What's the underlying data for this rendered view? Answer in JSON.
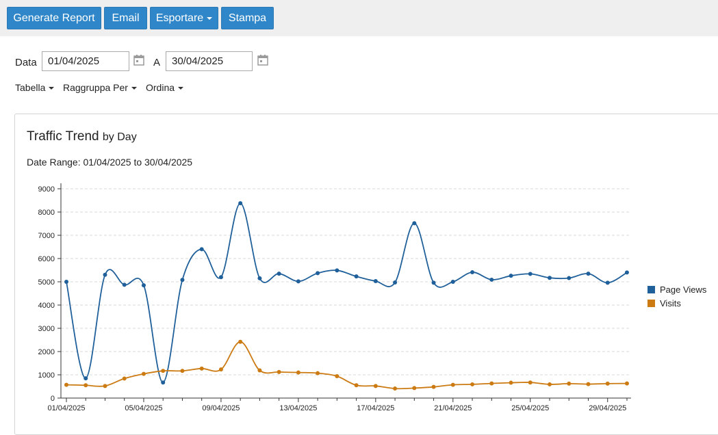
{
  "toolbar": {
    "generate_label": "Generate Report",
    "email_label": "Email",
    "export_label": "Esportare",
    "print_label": "Stampa"
  },
  "filters": {
    "from_label": "Data",
    "from_value": "01/04/2025",
    "to_label": "A",
    "to_value": "30/04/2025"
  },
  "menus": {
    "table": "Tabella",
    "group_by": "Raggruppa Per",
    "sort": "Ordina"
  },
  "report": {
    "title": "Traffic Trend",
    "title_sub": "by Day",
    "date_range": "Date Range: 01/04/2025 to 30/04/2025"
  },
  "colors": {
    "accent": "#2f86c8",
    "page_views": "#1f5f9a",
    "visits": "#cc7a12"
  },
  "chart_data": {
    "type": "line",
    "title": "Traffic Trend by Day",
    "xlabel": "",
    "ylabel": "",
    "ylim": [
      0,
      9000
    ],
    "yticks": [
      0,
      1000,
      2000,
      3000,
      4000,
      5000,
      6000,
      7000,
      8000,
      9000
    ],
    "x": [
      "01/04/2025",
      "02/04/2025",
      "03/04/2025",
      "04/04/2025",
      "05/04/2025",
      "06/04/2025",
      "07/04/2025",
      "08/04/2025",
      "09/04/2025",
      "10/04/2025",
      "11/04/2025",
      "12/04/2025",
      "13/04/2025",
      "14/04/2025",
      "15/04/2025",
      "16/04/2025",
      "17/04/2025",
      "18/04/2025",
      "19/04/2025",
      "20/04/2025",
      "21/04/2025",
      "22/04/2025",
      "23/04/2025",
      "24/04/2025",
      "25/04/2025",
      "26/04/2025",
      "27/04/2025",
      "28/04/2025",
      "29/04/2025",
      "30/04/2025"
    ],
    "xtick_labels": [
      "01/04/2025",
      "05/04/2025",
      "09/04/2025",
      "13/04/2025",
      "17/04/2025",
      "21/04/2025",
      "25/04/2025",
      "29/04/2025"
    ],
    "grid": "horizontal dashed",
    "legend": "right",
    "series": [
      {
        "name": "Page Views",
        "color": "#1f5f9a",
        "values": [
          5000,
          850,
          5300,
          4870,
          4850,
          670,
          5080,
          6400,
          5200,
          8380,
          5150,
          5350,
          5020,
          5370,
          5490,
          5230,
          5030,
          4970,
          7520,
          4960,
          5000,
          5410,
          5090,
          5260,
          5340,
          5170,
          5160,
          5350,
          4960,
          5400
        ]
      },
      {
        "name": "Visits",
        "color": "#cc7a12",
        "values": [
          570,
          550,
          520,
          840,
          1040,
          1170,
          1170,
          1270,
          1230,
          2420,
          1190,
          1120,
          1100,
          1070,
          940,
          550,
          520,
          410,
          430,
          480,
          570,
          590,
          630,
          660,
          670,
          590,
          620,
          600,
          620,
          630
        ]
      }
    ]
  }
}
